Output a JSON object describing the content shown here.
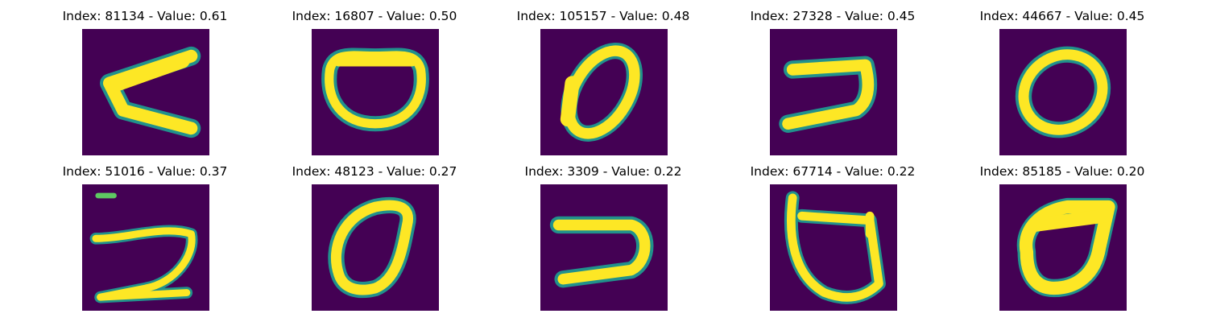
{
  "colors": {
    "background": "#440154",
    "stroke": "#fde725",
    "edge": "#21918c",
    "mid": "#5ec962"
  },
  "panels": [
    {
      "title": "Index: 81134 - Value: 0.61",
      "glyph": "c-shape-icon"
    },
    {
      "title": "Index: 16807 - Value: 0.50",
      "glyph": "o-shape-icon"
    },
    {
      "title": "Index: 105157 - Value: 0.48",
      "glyph": "tilted-o-shape-icon"
    },
    {
      "title": "Index: 27328 - Value: 0.45",
      "glyph": "reversed-c-shape-icon"
    },
    {
      "title": "Index: 44667 - Value: 0.45",
      "glyph": "o-shape-icon"
    },
    {
      "title": "Index: 51016 - Value: 0.37",
      "glyph": "two-like-shape-icon"
    },
    {
      "title": "Index: 48123 - Value: 0.27",
      "glyph": "o-shape-icon"
    },
    {
      "title": "Index: 3309 - Value: 0.22",
      "glyph": "reversed-c-shape-icon"
    },
    {
      "title": "Index: 67714 - Value: 0.22",
      "glyph": "d-like-shape-icon"
    },
    {
      "title": "Index: 85185 - Value: 0.20",
      "glyph": "o-shape-icon"
    }
  ]
}
